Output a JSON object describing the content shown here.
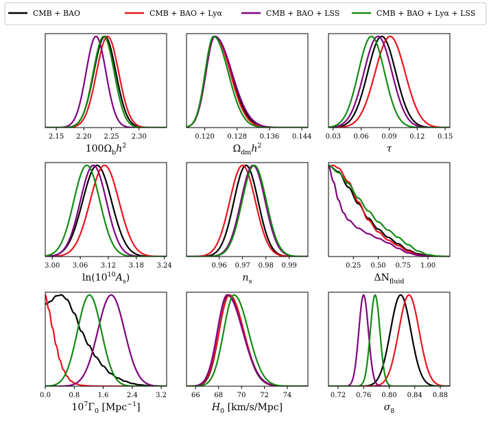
{
  "chart_data": {
    "type": "line",
    "description_note": "Grid of 1D marginalized posterior distributions (normalized).",
    "legend": {
      "placement": "top",
      "entries": [
        {
          "name": "CMB + BAO",
          "color": "#000000"
        },
        {
          "name": "CMB + BAO + Lyα",
          "color": "#e8141c"
        },
        {
          "name": "CMB + BAO + LSS",
          "color": "#800080"
        },
        {
          "name": "CMB + BAO + Lyα + LSS",
          "color": "#138a13"
        }
      ]
    },
    "panels": [
      {
        "id": "omega-b",
        "xlabel": "100Ω_b h^2",
        "xlabel_main": "100Ω",
        "xlabel_sub": "b",
        "xlabel_tail": "h",
        "xlabel_sup": "2",
        "xlim": [
          2.13,
          2.35
        ],
        "ticks": [
          2.15,
          2.2,
          2.25,
          2.3
        ],
        "tick_labels": [
          "2.15",
          "2.20",
          "2.25",
          "2.30"
        ],
        "series": [
          {
            "name": "CMB + BAO",
            "color": "#000000",
            "shape": {
              "kind": "gauss",
              "mean": 2.238,
              "sigma": 0.02
            }
          },
          {
            "name": "CMB + BAO + Lyα",
            "color": "#e8141c",
            "shape": {
              "kind": "gauss",
              "mean": 2.243,
              "sigma": 0.02
            }
          },
          {
            "name": "CMB + BAO + LSS",
            "color": "#800080",
            "shape": {
              "kind": "gauss",
              "mean": 2.222,
              "sigma": 0.018
            }
          },
          {
            "name": "CMB + BAO + Lyα + LSS",
            "color": "#138a13",
            "shape": {
              "kind": "gauss",
              "mean": 2.236,
              "sigma": 0.019
            }
          }
        ]
      },
      {
        "id": "omega-dm",
        "xlabel": "Ω_dm h^2",
        "xlabel_main": "Ω",
        "xlabel_sub": "dm",
        "xlabel_tail": "h",
        "xlabel_sup": "2",
        "xlim": [
          0.1155,
          0.1455
        ],
        "ticks": [
          0.12,
          0.128,
          0.136,
          0.144
        ],
        "tick_labels": [
          "0.120",
          "0.128",
          "0.136",
          "0.144"
        ],
        "series": [
          {
            "name": "CMB + BAO",
            "color": "#000000",
            "shape": {
              "kind": "skew",
              "mode": 0.1225,
              "left": 0.0022,
              "right": 0.004
            }
          },
          {
            "name": "CMB + BAO + Lyα",
            "color": "#e8141c",
            "shape": {
              "kind": "skew",
              "mode": 0.1225,
              "left": 0.0022,
              "right": 0.0038
            }
          },
          {
            "name": "CMB + BAO + LSS",
            "color": "#800080",
            "shape": {
              "kind": "skew",
              "mode": 0.1225,
              "left": 0.0022,
              "right": 0.0042
            }
          },
          {
            "name": "CMB + BAO + Lyα + LSS",
            "color": "#138a13",
            "shape": {
              "kind": "skew",
              "mode": 0.1222,
              "left": 0.0021,
              "right": 0.0036
            }
          }
        ]
      },
      {
        "id": "tau",
        "xlabel": "τ",
        "xlabel_main": "τ",
        "xlim": [
          0.025,
          0.155
        ],
        "ticks": [
          0.03,
          0.06,
          0.09,
          0.12,
          0.15
        ],
        "tick_labels": [
          "0.03",
          "0.06",
          "0.09",
          "0.12",
          "0.15"
        ],
        "series": [
          {
            "name": "CMB + BAO",
            "color": "#000000",
            "shape": {
              "kind": "gauss",
              "mean": 0.082,
              "sigma": 0.015
            }
          },
          {
            "name": "CMB + BAO + Lyα",
            "color": "#e8141c",
            "shape": {
              "kind": "gauss",
              "mean": 0.091,
              "sigma": 0.016
            }
          },
          {
            "name": "CMB + BAO + LSS",
            "color": "#800080",
            "shape": {
              "kind": "gauss",
              "mean": 0.078,
              "sigma": 0.015
            }
          },
          {
            "name": "CMB + BAO + Lyα + LSS",
            "color": "#138a13",
            "shape": {
              "kind": "gauss",
              "mean": 0.071,
              "sigma": 0.014
            }
          }
        ]
      },
      {
        "id": "ln-as",
        "xlabel": "ln(10^10 A_s)",
        "xlabel_main": "ln(10",
        "xlabel_sup": "10",
        "xlabel_tail": "A",
        "xlabel_sub": "s",
        "xlabel_close": ")",
        "xlim": [
          2.985,
          3.245
        ],
        "ticks": [
          3.0,
          3.06,
          3.12,
          3.18,
          3.24
        ],
        "tick_labels": [
          "3.00",
          "3.06",
          "3.12",
          "3.18",
          "3.24"
        ],
        "series": [
          {
            "name": "CMB + BAO",
            "color": "#000000",
            "shape": {
              "kind": "gauss",
              "mean": 3.096,
              "sigma": 0.031
            }
          },
          {
            "name": "CMB + BAO + Lyα",
            "color": "#e8141c",
            "shape": {
              "kind": "gauss",
              "mean": 3.112,
              "sigma": 0.031
            }
          },
          {
            "name": "CMB + BAO + LSS",
            "color": "#800080",
            "shape": {
              "kind": "gauss",
              "mean": 3.088,
              "sigma": 0.028
            }
          },
          {
            "name": "CMB + BAO + Lyα + LSS",
            "color": "#138a13",
            "shape": {
              "kind": "gauss",
              "mean": 3.074,
              "sigma": 0.028
            }
          }
        ]
      },
      {
        "id": "ns",
        "xlabel": "n_s",
        "xlabel_main": "n",
        "xlabel_sub": "s",
        "xlim": [
          0.946,
          0.998
        ],
        "ticks": [
          0.96,
          0.97,
          0.98,
          0.99
        ],
        "tick_labels": [
          "0.96",
          "0.97",
          "0.98",
          "0.99"
        ],
        "series": [
          {
            "name": "CMB + BAO",
            "color": "#000000",
            "shape": {
              "kind": "gauss",
              "mean": 0.9715,
              "sigma": 0.0052
            }
          },
          {
            "name": "CMB + BAO + Lyα",
            "color": "#e8141c",
            "shape": {
              "kind": "gauss",
              "mean": 0.97,
              "sigma": 0.0055
            }
          },
          {
            "name": "CMB + BAO + LSS",
            "color": "#800080",
            "shape": {
              "kind": "gauss",
              "mean": 0.9745,
              "sigma": 0.0052
            }
          },
          {
            "name": "CMB + BAO + Lyα + LSS",
            "color": "#138a13",
            "shape": {
              "kind": "gauss",
              "mean": 0.975,
              "sigma": 0.0052
            }
          }
        ]
      },
      {
        "id": "delta-n",
        "xlabel": "ΔN_fluid",
        "xlabel_main": "ΔN",
        "xlabel_sub": "fluid",
        "xlim": [
          0.0,
          1.22
        ],
        "ticks": [
          0.25,
          0.5,
          0.75,
          1.0
        ],
        "tick_labels": [
          "0.25",
          "0.50",
          "0.75",
          "1.00"
        ],
        "series": [
          {
            "name": "CMB + BAO",
            "color": "#000000",
            "shape": {
              "kind": "points",
              "x": [
                0,
                0.1,
                0.2,
                0.3,
                0.4,
                0.5,
                0.6,
                0.7,
                0.8,
                0.9,
                1.0,
                1.1,
                1.22
              ],
              "y": [
                1.0,
                0.93,
                0.76,
                0.58,
                0.42,
                0.3,
                0.21,
                0.14,
                0.07,
                0.03,
                0.01,
                0.003,
                0.0
              ]
            }
          },
          {
            "name": "CMB + BAO + Lyα",
            "color": "#e8141c",
            "shape": {
              "kind": "points",
              "x": [
                0,
                0.05,
                0.1,
                0.2,
                0.3,
                0.4,
                0.5,
                0.6,
                0.7,
                0.8,
                0.9,
                1.0,
                1.22
              ],
              "y": [
                0.99,
                1.0,
                0.97,
                0.82,
                0.6,
                0.4,
                0.27,
                0.18,
                0.12,
                0.06,
                0.02,
                0.006,
                0.0
              ]
            }
          },
          {
            "name": "CMB + BAO + LSS",
            "color": "#800080",
            "shape": {
              "kind": "points",
              "x": [
                0,
                0.05,
                0.1,
                0.15,
                0.2,
                0.3,
                0.4,
                0.5,
                0.6,
                0.7,
                0.8,
                0.9,
                1.0,
                1.22
              ],
              "y": [
                1.0,
                0.82,
                0.62,
                0.48,
                0.4,
                0.31,
                0.25,
                0.2,
                0.15,
                0.09,
                0.04,
                0.015,
                0.005,
                0.0
              ]
            }
          },
          {
            "name": "CMB + BAO + Lyα + LSS",
            "color": "#138a13",
            "shape": {
              "kind": "points",
              "x": [
                0,
                0.1,
                0.2,
                0.3,
                0.4,
                0.5,
                0.6,
                0.7,
                0.8,
                0.9,
                1.0,
                1.1,
                1.22
              ],
              "y": [
                1.0,
                0.92,
                0.8,
                0.64,
                0.5,
                0.38,
                0.29,
                0.21,
                0.13,
                0.06,
                0.02,
                0.005,
                0.0
              ]
            }
          }
        ]
      },
      {
        "id": "gamma",
        "xlabel": "10^7 Γ_0 [Mpc^-1]",
        "xlabel_main": "10",
        "xlabel_sup": "7",
        "xlabel_tail": "Γ",
        "xlabel_sub": "0",
        "xlabel_close": " [Mpc",
        "xlabel_sup2": "−1",
        "xlabel_end": "]",
        "xlim": [
          0.0,
          3.35
        ],
        "ticks": [
          0.0,
          0.8,
          1.6,
          2.4,
          3.2
        ],
        "tick_labels": [
          "0.0",
          "0.8",
          "1.6",
          "2.4",
          "3.2"
        ],
        "series": [
          {
            "name": "CMB + BAO",
            "color": "#000000",
            "shape": {
              "kind": "points",
              "x": [
                0,
                0.15,
                0.3,
                0.45,
                0.6,
                0.8,
                1.0,
                1.2,
                1.4,
                1.6,
                1.8,
                2.0,
                2.2,
                2.4,
                2.6,
                2.8,
                3.0,
                3.35
              ],
              "y": [
                0.9,
                0.93,
                0.99,
                1.0,
                0.95,
                0.8,
                0.6,
                0.45,
                0.32,
                0.22,
                0.14,
                0.09,
                0.055,
                0.03,
                0.015,
                0.008,
                0.004,
                0.0
              ]
            }
          },
          {
            "name": "CMB + BAO + Lyα",
            "color": "#e8141c",
            "shape": {
              "kind": "points",
              "x": [
                0,
                0.1,
                0.2,
                0.3,
                0.4,
                0.5,
                0.6,
                0.7,
                0.8,
                0.9,
                1.0,
                1.2,
                1.4,
                1.6,
                3.35
              ],
              "y": [
                1.0,
                0.84,
                0.64,
                0.45,
                0.29,
                0.18,
                0.11,
                0.06,
                0.035,
                0.02,
                0.01,
                0.004,
                0.001,
                0.0,
                0.0
              ]
            }
          },
          {
            "name": "CMB + BAO + LSS",
            "color": "#800080",
            "shape": {
              "kind": "gauss",
              "mean": 1.82,
              "sigma": 0.37
            }
          },
          {
            "name": "CMB + BAO + Lyα + LSS",
            "color": "#138a13",
            "shape": {
              "kind": "gauss",
              "mean": 1.22,
              "sigma": 0.33
            }
          }
        ]
      },
      {
        "id": "h0",
        "xlabel": "H_0 [km/s/Mpc]",
        "xlabel_main": "H",
        "xlabel_sub": "0",
        "xlabel_close": " [km/s/Mpc]",
        "xlim": [
          65.2,
          75.8
        ],
        "ticks": [
          66,
          68,
          70,
          72,
          74
        ],
        "tick_labels": [
          "66",
          "68",
          "70",
          "72",
          "74"
        ],
        "series": [
          {
            "name": "CMB + BAO",
            "color": "#000000",
            "shape": {
              "kind": "skew",
              "mode": 68.9,
              "left": 0.85,
              "right": 1.25
            }
          },
          {
            "name": "CMB + BAO + Lyα",
            "color": "#e8141c",
            "shape": {
              "kind": "skew",
              "mode": 68.95,
              "left": 0.9,
              "right": 1.25
            }
          },
          {
            "name": "CMB + BAO + LSS",
            "color": "#800080",
            "shape": {
              "kind": "skew",
              "mode": 68.75,
              "left": 0.85,
              "right": 1.35
            }
          },
          {
            "name": "CMB + BAO + Lyα + LSS",
            "color": "#138a13",
            "shape": {
              "kind": "skew",
              "mode": 69.35,
              "left": 0.9,
              "right": 1.25
            }
          }
        ]
      },
      {
        "id": "sigma8",
        "xlabel": "σ_8",
        "xlabel_main": "σ",
        "xlabel_sub": "8",
        "xlim": [
          0.705,
          0.895
        ],
        "ticks": [
          0.72,
          0.76,
          0.8,
          0.84,
          0.88
        ],
        "tick_labels": [
          "0.72",
          "0.76",
          "0.80",
          "0.84",
          "0.88"
        ],
        "series": [
          {
            "name": "CMB + BAO",
            "color": "#000000",
            "shape": {
              "kind": "gauss",
              "mean": 0.818,
              "sigma": 0.016
            }
          },
          {
            "name": "CMB + BAO + Lyα",
            "color": "#e8141c",
            "shape": {
              "kind": "gauss",
              "mean": 0.831,
              "sigma": 0.016
            }
          },
          {
            "name": "CMB + BAO + LSS",
            "color": "#800080",
            "shape": {
              "kind": "gauss",
              "mean": 0.76,
              "sigma": 0.0075
            }
          },
          {
            "name": "CMB + BAO + Lyα + LSS",
            "color": "#138a13",
            "shape": {
              "kind": "gauss",
              "mean": 0.778,
              "sigma": 0.0075
            }
          }
        ]
      }
    ]
  }
}
